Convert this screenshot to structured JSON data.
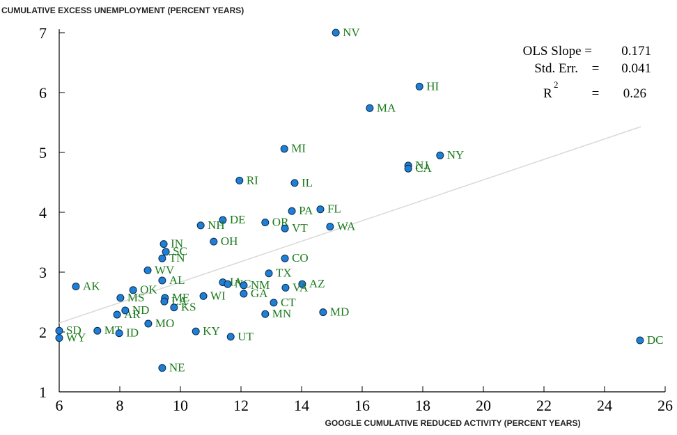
{
  "chart_data": {
    "type": "scatter",
    "title": "CUMULATIVE EXCESS UNEMPLOYMENT (PERCENT YEARS)",
    "x_label": "GOOGLE CUMULATIVE REDUCED ACTIVITY (PERCENT YEARS)",
    "xlim": [
      6,
      26
    ],
    "xticks": [
      6,
      8,
      10,
      12,
      14,
      16,
      18,
      20,
      22,
      24,
      26
    ],
    "ylim": [
      1,
      7
    ],
    "yticks": [
      1,
      2,
      3,
      4,
      5,
      6,
      7
    ],
    "series": [
      {
        "color": "#1f7fd6",
        "point_labels": [
          "NV",
          "HI",
          "MA",
          "MI",
          "NY",
          "NJ",
          "CA",
          "RI",
          "IL",
          "FL",
          "PA",
          "DE",
          "OR",
          "NH",
          "VT",
          "WA",
          "OH",
          "IN",
          "SC",
          "TN",
          "CO",
          "WV",
          "TX",
          "AL",
          "AK",
          "IA",
          "NC",
          "NM",
          "AZ",
          "VA",
          "OK",
          "GA",
          "MS",
          "ME",
          "WI",
          "LA",
          "KS",
          "CT",
          "AR",
          "ND",
          "MN",
          "MD",
          "MO",
          "SD",
          "MT",
          "KY",
          "ID",
          "WY",
          "UT",
          "DC",
          "NE"
        ],
        "x": [
          15.13,
          17.89,
          16.25,
          13.43,
          18.57,
          17.52,
          17.52,
          11.95,
          13.77,
          14.62,
          13.68,
          11.4,
          12.8,
          10.67,
          13.45,
          14.94,
          11.1,
          9.45,
          9.52,
          9.4,
          13.45,
          8.92,
          12.92,
          9.4,
          6.55,
          11.4,
          11.56,
          12.09,
          14.02,
          13.47,
          8.44,
          12.09,
          8.02,
          9.49,
          10.76,
          9.47,
          9.79,
          13.08,
          7.91,
          8.18,
          12.8,
          14.71,
          8.94,
          6.0,
          7.26,
          10.51,
          7.98,
          6.0,
          11.66,
          25.17,
          9.4
        ],
        "values": [
          7.0,
          6.1,
          5.74,
          5.06,
          4.95,
          4.78,
          4.73,
          4.53,
          4.49,
          4.05,
          4.02,
          3.87,
          3.83,
          3.78,
          3.73,
          3.76,
          3.51,
          3.47,
          3.34,
          3.23,
          3.23,
          3.03,
          2.98,
          2.86,
          2.76,
          2.83,
          2.8,
          2.78,
          2.8,
          2.74,
          2.7,
          2.64,
          2.57,
          2.57,
          2.6,
          2.51,
          2.41,
          2.49,
          2.29,
          2.36,
          2.3,
          2.33,
          2.14,
          2.02,
          2.02,
          2.01,
          1.98,
          1.9,
          1.92,
          1.86,
          1.4
        ]
      }
    ],
    "fit_line": {
      "color": "#d9d9d9",
      "x": [
        6,
        25.2
      ],
      "y": [
        2.15,
        5.43
      ]
    },
    "stats": [
      {
        "label": "OLS Slope =",
        "value": "0.171"
      },
      {
        "label": "Std. Err.",
        "eq": "=",
        "value": "0.041"
      },
      {
        "label": "R",
        "sup": "2",
        "eq": "=",
        "value": "0.26"
      }
    ]
  }
}
